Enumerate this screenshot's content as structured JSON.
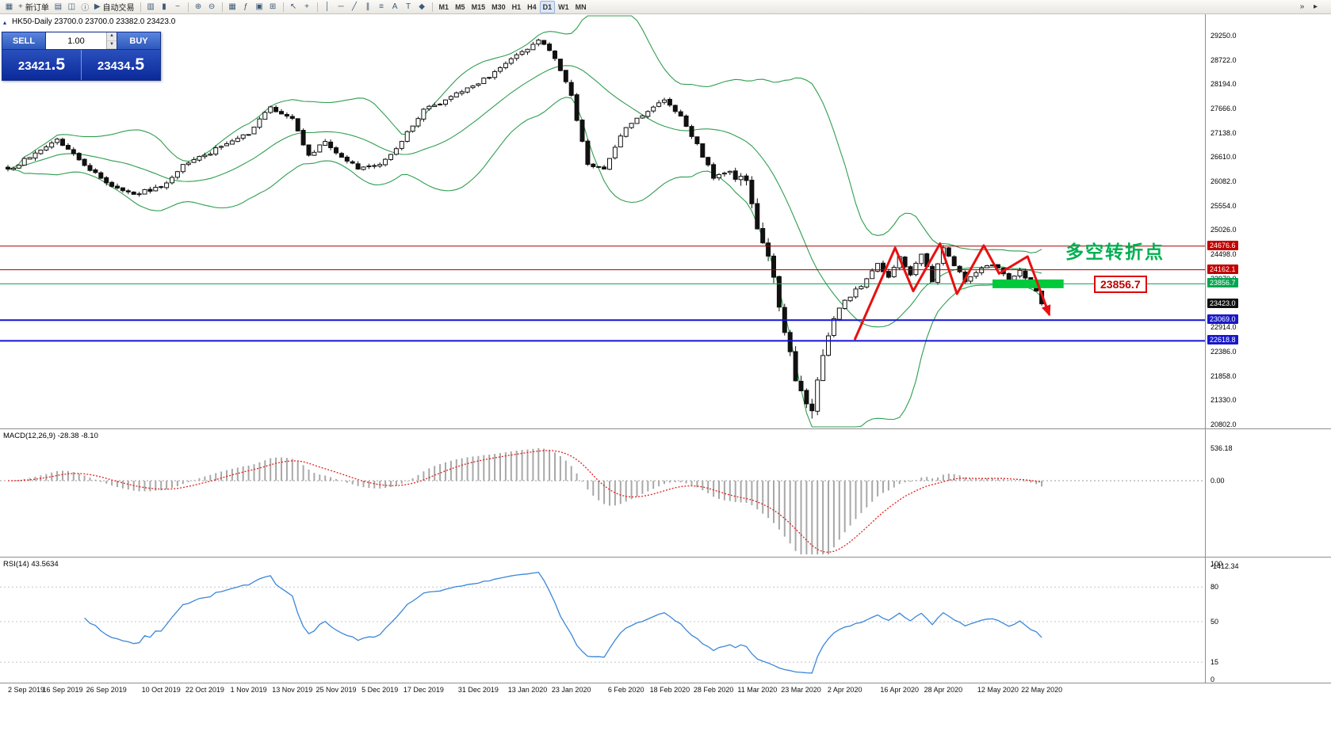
{
  "toolbar": {
    "items": [
      {
        "name": "new-chart-icon",
        "glyph": "▦"
      },
      {
        "name": "new-order-button",
        "glyph": "+",
        "label": "新订单"
      },
      {
        "name": "market-watch-icon",
        "glyph": "▤"
      },
      {
        "name": "accounts-icon",
        "glyph": "◫"
      },
      {
        "name": "info-icon",
        "glyph": "ⓘ"
      },
      {
        "name": "autotrading-button",
        "glyph": "▶",
        "label": "自动交易"
      },
      {
        "sep": true
      },
      {
        "name": "bar-chart-type-icon",
        "glyph": "▥"
      },
      {
        "name": "candlestick-type-icon",
        "glyph": "▮"
      },
      {
        "name": "line-chart-type-icon",
        "glyph": "~"
      },
      {
        "sep": true
      },
      {
        "name": "zoom-in-icon",
        "glyph": "⊕"
      },
      {
        "name": "zoom-out-icon",
        "glyph": "⊖"
      },
      {
        "sep": true
      },
      {
        "name": "tile-windows-icon",
        "glyph": "▦"
      },
      {
        "name": "indicators-icon",
        "glyph": "ƒ"
      },
      {
        "name": "templates-icon",
        "glyph": "▣"
      },
      {
        "name": "add-indicator-icon",
        "glyph": "⊞"
      },
      {
        "sep": true
      },
      {
        "name": "cursor-icon",
        "glyph": "↖"
      },
      {
        "name": "crosshair-icon",
        "glyph": "+"
      },
      {
        "sep": true
      },
      {
        "name": "vertical-line-tool-icon",
        "glyph": "│"
      },
      {
        "name": "horizontal-line-tool-icon",
        "glyph": "─"
      },
      {
        "name": "trendline-tool-icon",
        "glyph": "╱"
      },
      {
        "name": "channel-tool-icon",
        "glyph": "∥"
      },
      {
        "name": "fibonacci-tool-icon",
        "glyph": "≡"
      },
      {
        "name": "text-tool-icon",
        "glyph": "A"
      },
      {
        "name": "label-tool-icon",
        "glyph": "T"
      },
      {
        "name": "shapes-tool-icon",
        "glyph": "◆"
      },
      {
        "sep": true
      }
    ],
    "timeframes": [
      {
        "label": "M1"
      },
      {
        "label": "M5"
      },
      {
        "label": "M15"
      },
      {
        "label": "M30"
      },
      {
        "label": "H1"
      },
      {
        "label": "H4"
      },
      {
        "label": "D1",
        "active": true
      },
      {
        "label": "W1"
      },
      {
        "label": "MN"
      }
    ],
    "right_items": [
      {
        "name": "scroll-to-end-icon",
        "glyph": "»"
      },
      {
        "name": "chart-shift-icon",
        "glyph": "▸"
      }
    ]
  },
  "chart_header": {
    "expander": "▴",
    "title": "HK50-Daily  23700.0 23700.0 23382.0 23423.0"
  },
  "trade_panel": {
    "sell_label": "SELL",
    "buy_label": "BUY",
    "volume": "1.00",
    "vol_up_glyph": "▲",
    "vol_down_glyph": "▼",
    "sell_price_main": "23421",
    "sell_price_pips": ".5",
    "buy_price_main": "23434",
    "buy_price_pips": ".5"
  },
  "price_axis": {
    "labels": [
      {
        "text": "29250.0",
        "price": 29250
      },
      {
        "text": "28722.0",
        "price": 28722
      },
      {
        "text": "28194.0",
        "price": 28194
      },
      {
        "text": "27666.0",
        "price": 27666
      },
      {
        "text": "27138.0",
        "price": 27138
      },
      {
        "text": "26610.0",
        "price": 26610
      },
      {
        "text": "26082.0",
        "price": 26082
      },
      {
        "text": "25554.0",
        "price": 25554
      },
      {
        "text": "25026.0",
        "price": 25026
      },
      {
        "text": "24498.0",
        "price": 24498
      },
      {
        "text": "23970.0",
        "price": 23970
      },
      {
        "text": "23442.0",
        "price": 23442
      },
      {
        "text": "22914.0",
        "price": 22914
      },
      {
        "text": "22386.0",
        "price": 22386
      },
      {
        "text": "21858.0",
        "price": 21858
      },
      {
        "text": "21330.0",
        "price": 21330
      },
      {
        "text": "20802.0",
        "price": 20802
      }
    ]
  },
  "price_tags": [
    {
      "text": "24676.6",
      "price": 24676.6,
      "bg": "#c00000"
    },
    {
      "text": "24162.1",
      "price": 24162.1,
      "bg": "#c00000"
    },
    {
      "text": "23856.7",
      "price": 23856.7,
      "bg": "#00a651"
    },
    {
      "text": "23423.0",
      "price": 23423.0,
      "bg": "#101010"
    },
    {
      "text": "23069.0",
      "price": 23069.0,
      "bg": "#1818c8"
    },
    {
      "text": "22618.8",
      "price": 22618.8,
      "bg": "#1818c8"
    }
  ],
  "chart_data": {
    "type": "candlestick",
    "symbol": "HK50",
    "timeframe": "Daily",
    "candles_count": 190,
    "last_candle": {
      "open": 23700.0,
      "high": 23700.0,
      "low": 23382.0,
      "close": 23423.0
    },
    "current_bid": 23421.5,
    "current_ask": 23434.5,
    "y_axis": {
      "min": 20802.0,
      "max": 29250.0,
      "step": 528.0
    },
    "bollinger": {
      "period": 20,
      "deviation": 2
    },
    "price_anchors": [
      [
        0,
        26350
      ],
      [
        4,
        26600
      ],
      [
        9,
        27000
      ],
      [
        13,
        26550
      ],
      [
        18,
        26050
      ],
      [
        23,
        25800
      ],
      [
        28,
        25950
      ],
      [
        32,
        26450
      ],
      [
        36,
        26650
      ],
      [
        40,
        26900
      ],
      [
        44,
        27100
      ],
      [
        48,
        27700
      ],
      [
        52,
        27450
      ],
      [
        55,
        26650
      ],
      [
        58,
        26950
      ],
      [
        60,
        26700
      ],
      [
        64,
        26350
      ],
      [
        68,
        26450
      ],
      [
        72,
        26950
      ],
      [
        76,
        27650
      ],
      [
        80,
        27850
      ],
      [
        86,
        28200
      ],
      [
        90,
        28550
      ],
      [
        95,
        28950
      ],
      [
        97,
        29150
      ],
      [
        100,
        28750
      ],
      [
        103,
        27950
      ],
      [
        106,
        26450
      ],
      [
        109,
        26350
      ],
      [
        113,
        27250
      ],
      [
        117,
        27600
      ],
      [
        120,
        27850
      ],
      [
        123,
        27500
      ],
      [
        126,
        26900
      ],
      [
        129,
        26150
      ],
      [
        132,
        26300
      ],
      [
        135,
        26100
      ],
      [
        137,
        25050
      ],
      [
        140,
        24000
      ],
      [
        142,
        22800
      ],
      [
        144,
        21750
      ],
      [
        146,
        21250
      ],
      [
        147,
        21100
      ],
      [
        149,
        22300
      ],
      [
        151,
        23100
      ],
      [
        153,
        23500
      ],
      [
        156,
        23800
      ],
      [
        159,
        24300
      ],
      [
        161,
        24000
      ],
      [
        163,
        24450
      ],
      [
        165,
        24050
      ],
      [
        167,
        24500
      ],
      [
        169,
        23900
      ],
      [
        171,
        24640
      ],
      [
        173,
        24250
      ],
      [
        175,
        23900
      ],
      [
        177,
        24100
      ],
      [
        179,
        24250
      ],
      [
        181,
        24200
      ],
      [
        183,
        23950
      ],
      [
        185,
        24150
      ],
      [
        187,
        23800
      ],
      [
        188,
        23700
      ],
      [
        189,
        23423
      ]
    ],
    "hlines": [
      {
        "price": 24676.6,
        "color": "#aa0000",
        "width": 1
      },
      {
        "price": 24162.1,
        "color": "#aa0000",
        "width": 1
      },
      {
        "price": 23856.7,
        "color": "#00a651",
        "width": 1
      },
      {
        "price": 23069.0,
        "color": "#1414d2",
        "width": 2
      },
      {
        "price": 22618.8,
        "color": "#1414d2",
        "width": 2
      }
    ],
    "dates": [
      {
        "label": "2 Sep 2019",
        "i": 0
      },
      {
        "label": "16 Sep 2019",
        "i": 10
      },
      {
        "label": "26 Sep 2019",
        "i": 18
      },
      {
        "label": "10 Oct 2019",
        "i": 28
      },
      {
        "label": "22 Oct 2019",
        "i": 36
      },
      {
        "label": "1 Nov 2019",
        "i": 44
      },
      {
        "label": "13 Nov 2019",
        "i": 52
      },
      {
        "label": "25 Nov 2019",
        "i": 60
      },
      {
        "label": "5 Dec 2019",
        "i": 68
      },
      {
        "label": "17 Dec 2019",
        "i": 76
      },
      {
        "label": "31 Dec 2019",
        "i": 86
      },
      {
        "label": "13 Jan 2020",
        "i": 95
      },
      {
        "label": "23 Jan 2020",
        "i": 103
      },
      {
        "label": "6 Feb 2020",
        "i": 113
      },
      {
        "label": "18 Feb 2020",
        "i": 121
      },
      {
        "label": "28 Feb 2020",
        "i": 129
      },
      {
        "label": "11 Mar 2020",
        "i": 137
      },
      {
        "label": "23 Mar 2020",
        "i": 145
      },
      {
        "label": "2 Apr 2020",
        "i": 153
      },
      {
        "label": "16 Apr 2020",
        "i": 163
      },
      {
        "label": "28 Apr 2020",
        "i": 171
      },
      {
        "label": "12 May 2020",
        "i": 181
      },
      {
        "label": "22 May 2020",
        "i": 189
      }
    ],
    "indicators": {
      "macd": {
        "label": "MACD(12,26,9) -28.38 -8.10",
        "fast": 12,
        "slow": 26,
        "signal": 9,
        "current": -28.38,
        "current_signal": -8.1,
        "axis_labels": [
          {
            "text": "536.18",
            "value": 536.18
          },
          {
            "text": "0.00",
            "value": 0
          },
          {
            "text": "-1412.34",
            "value": -1412.34
          }
        ]
      },
      "rsi": {
        "label": "RSI(14) 43.5634",
        "period": 14,
        "current": 43.5634,
        "axis_labels": [
          {
            "text": "100",
            "value": 100
          },
          {
            "text": "80",
            "value": 80
          },
          {
            "text": "50",
            "value": 50
          },
          {
            "text": "15",
            "value": 15
          },
          {
            "text": "0",
            "value": 0
          }
        ],
        "levels": [
          80,
          50,
          15
        ]
      }
    },
    "annotations": {
      "turning_point_text": "多空转折点",
      "price_label": "23856.7",
      "green_zone": {
        "price": 23856.7,
        "i_start": 180,
        "i_end": 193
      },
      "arrow_color": "#e81010",
      "arrow_points": [
        [
          154.8,
          22640
        ],
        [
          162.2,
          24640
        ],
        [
          165.5,
          23700
        ],
        [
          170.4,
          24730
        ],
        [
          173.5,
          23640
        ],
        [
          178.4,
          24690
        ],
        [
          181.2,
          24080
        ],
        [
          186.4,
          24450
        ],
        [
          190.4,
          23180
        ]
      ]
    }
  }
}
